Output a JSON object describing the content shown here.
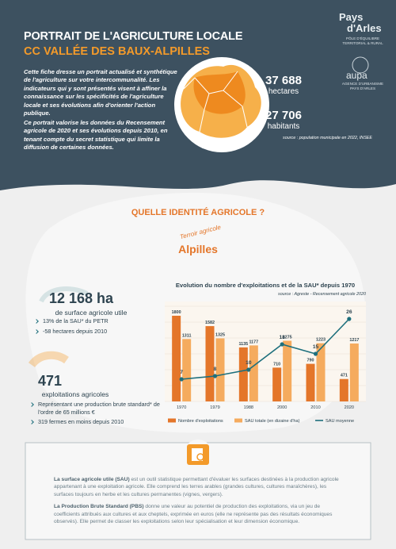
{
  "header": {
    "title": "PORTRAIT DE L'AGRICULTURE LOCALE",
    "subtitle": "CC VALLÉE DES BAUX-ALPILLES",
    "intro": [
      "Cette fiche dresse un portrait actualisé et synthétique de l'agriculture sur votre intercommunalité. Les indicateurs qui y sont présentés visent à affiner la connaissance sur les spécificités de l'agriculture locale et ses évolutions afin d'orienter l'action publique.",
      "Ce portrait valorise les données du Recensement agricole de 2020 et ses évolutions depuis 2010, en tenant compte du secret statistique qui limite la diffusion de certaines données."
    ],
    "stats": [
      {
        "value": "37 688",
        "label": "hectares"
      },
      {
        "value": "27 706",
        "label": "habitants"
      }
    ],
    "source": "source : population municipale en 2022, INSEE"
  },
  "logos": {
    "pays": "Pays",
    "arles": "d'Arles",
    "pays_sub": [
      "PÔLE D'ÉQUILIBRE",
      "TERRITORIAL & RURAL"
    ],
    "aupa": "aupa",
    "aupa_sub": [
      "AGENCE D'URBANISME",
      "PAYS D'ARLES"
    ]
  },
  "section": {
    "title": "QUELLE IDENTITÉ AGRICOLE ?",
    "tag": "Terroir agricole",
    "name": "Alpilles"
  },
  "key_figures": [
    {
      "value": "12 168 ha",
      "label": "de surface agricole utile",
      "bullets": [
        "13% de la SAU* du PETR",
        "-58 hectares depuis 2010"
      ]
    },
    {
      "value": "471",
      "label": "exploitations agricoles",
      "bullets": [
        "Représentant une production brute standard* de l'ordre de 65 millions €",
        "319 fermes en moins depuis 2010"
      ]
    }
  ],
  "chart_data": {
    "type": "bar",
    "title": "Evolution du nombre d'exploitations et de la SAU* depuis 1970",
    "source": "source : Agreste - Recensement agricole 2020",
    "categories": [
      "1970",
      "1979",
      "1988",
      "2000",
      "2010",
      "2020"
    ],
    "ylim": [
      0,
      2000
    ],
    "y2lim": [
      0,
      30
    ],
    "series": [
      {
        "name": "Nombre d'exploitations",
        "color": "#e4762a",
        "values": [
          1800,
          1582,
          1135,
          710,
          790,
          471
        ]
      },
      {
        "name": "SAU totale (en dizaine d'ha)",
        "color": "#f5ab5e",
        "values": [
          1311,
          1325,
          1177,
          1275,
          1223,
          1217
        ]
      },
      {
        "name": "SAU moyenne",
        "color": "#1d6f7c",
        "type": "line",
        "axis": "y2",
        "values": [
          7,
          8,
          10,
          18,
          15,
          26
        ]
      }
    ]
  },
  "definitions": [
    {
      "term": "La surface agricole utile (SAU)",
      "text": " est un outil statistique permettant d'évaluer les surfaces destinées à la production agricole appartenant à une exploitation agricole. Elle comprend les terres arables (grandes cultures, cultures maraîchères), les surfaces toujours en herbe et les cultures permanentes (vignes, vergers)."
    },
    {
      "term": "La Production Brute Standard (PBS)",
      "text": " donne une valeur au potentiel de production des exploitations, via un jeu de coefficients attribués aux cultures et aux cheptels, exprimée en euros (elle ne représente pas des résultats économiques observés). Elle permet de classer les exploitations selon leur spécialisation et leur dimension économique."
    }
  ]
}
